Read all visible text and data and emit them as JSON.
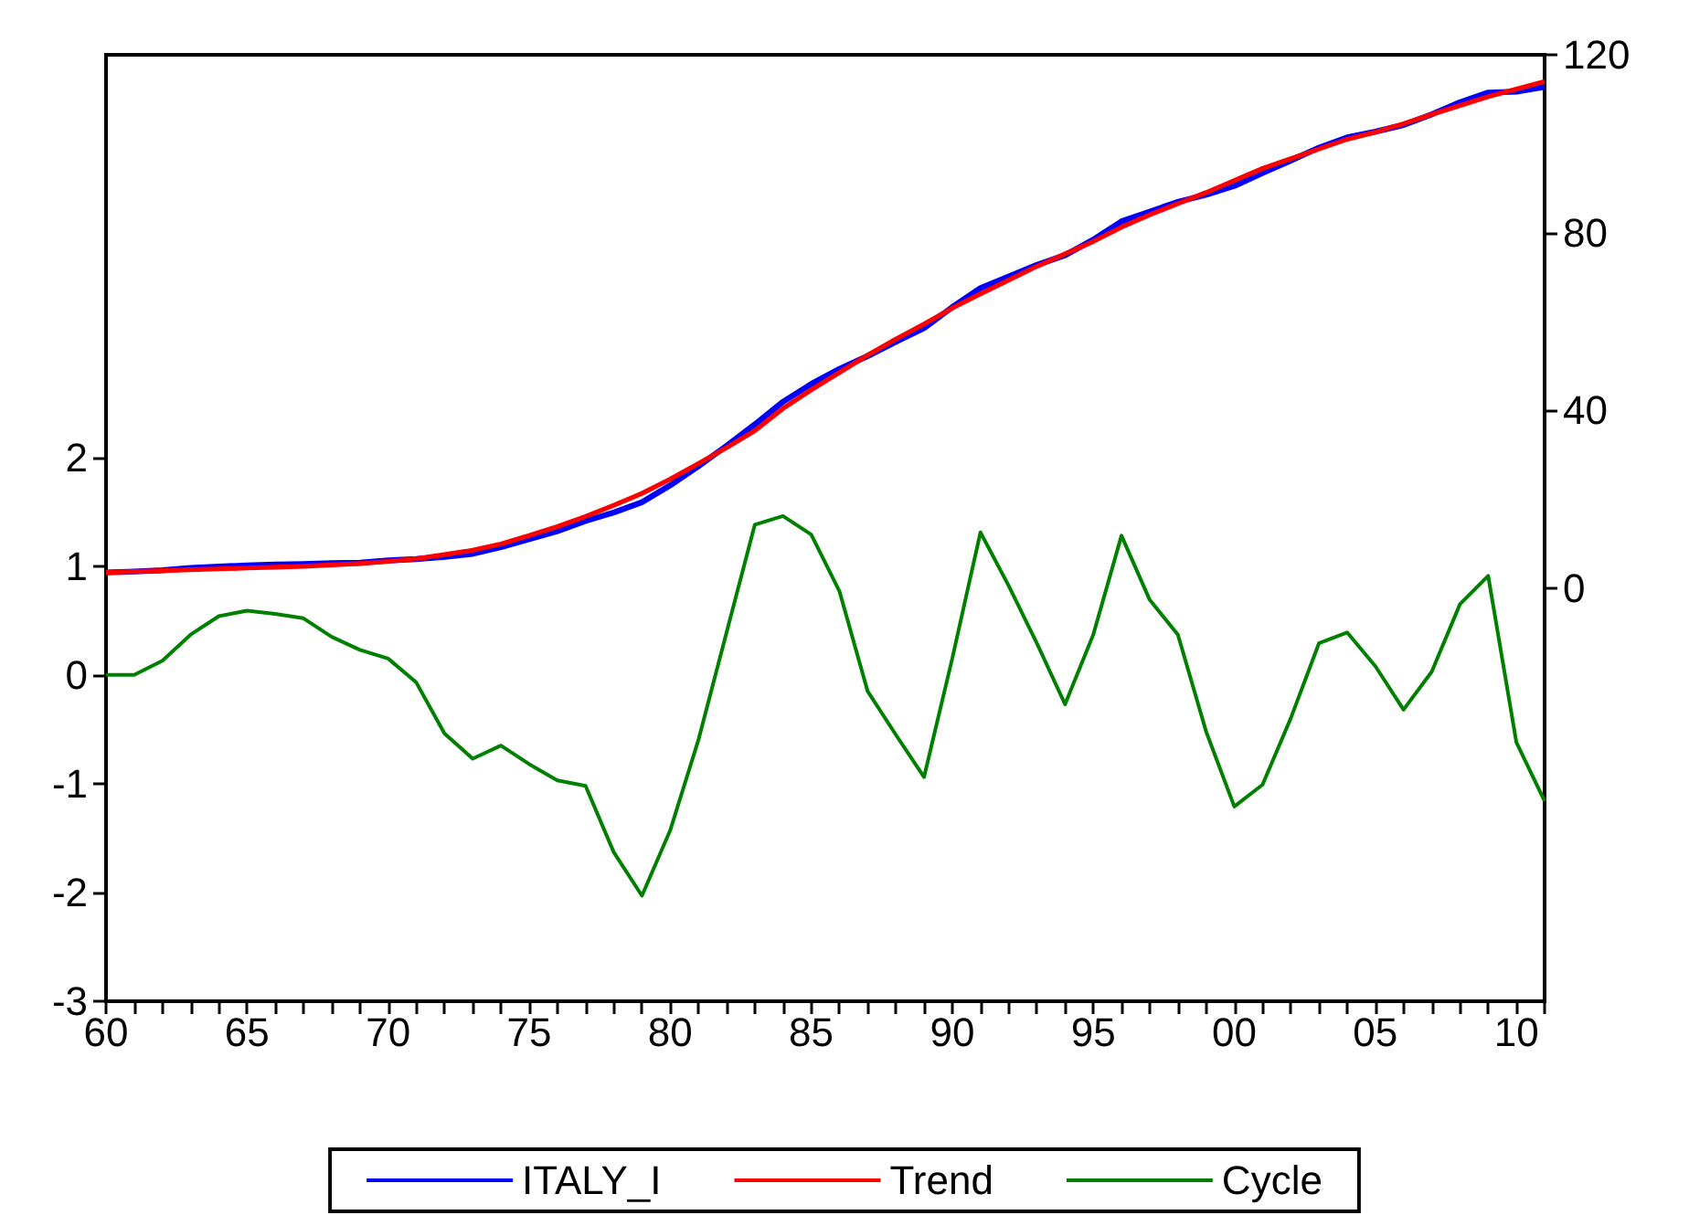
{
  "chart_data": {
    "type": "line",
    "x": [
      1960,
      1961,
      1962,
      1963,
      1964,
      1965,
      1966,
      1967,
      1968,
      1969,
      1970,
      1971,
      1972,
      1973,
      1974,
      1975,
      1976,
      1977,
      1978,
      1979,
      1980,
      1981,
      1982,
      1983,
      1984,
      1985,
      1986,
      1987,
      1988,
      1989,
      1990,
      1991,
      1992,
      1993,
      1994,
      1995,
      1996,
      1997,
      1998,
      1999,
      2000,
      2001,
      2002,
      2003,
      2004,
      2005,
      2006,
      2007,
      2008,
      2009,
      2010,
      2011
    ],
    "series": [
      {
        "name": "ITALY_I",
        "color": "#0000ff",
        "axis": "y2",
        "values": [
          3.5,
          3.7,
          4.0,
          4.5,
          4.8,
          5.1,
          5.3,
          5.4,
          5.6,
          5.7,
          6.2,
          6.5,
          7.0,
          7.7,
          9.2,
          11.0,
          12.8,
          15.1,
          17.0,
          19.3,
          23.1,
          27.4,
          32.0,
          36.8,
          41.9,
          45.9,
          49.3,
          52.2,
          55.4,
          58.5,
          63.2,
          67.5,
          70.1,
          72.7,
          74.9,
          78.4,
          82.5,
          84.7,
          86.9,
          88.5,
          90.5,
          93.4,
          96.2,
          99.1,
          101.4,
          102.7,
          104.2,
          106.6,
          109.3,
          111.5,
          111.7,
          112.8
        ]
      },
      {
        "name": "Trend",
        "color": "#ff0000",
        "axis": "y2",
        "values": [
          3.5,
          3.7,
          3.9,
          4.1,
          4.3,
          4.5,
          4.7,
          4.9,
          5.2,
          5.5,
          6.0,
          6.6,
          7.5,
          8.5,
          9.9,
          11.8,
          13.8,
          16.1,
          18.6,
          21.3,
          24.5,
          28.0,
          31.6,
          35.4,
          40.4,
          44.6,
          48.5,
          52.4,
          56.0,
          59.4,
          63.0,
          66.2,
          69.3,
          72.4,
          75.2,
          78.0,
          81.2,
          84.0,
          86.5,
          89.0,
          91.7,
          94.4,
          96.6,
          98.8,
          101.0,
          102.6,
          104.5,
          106.6,
          108.6,
          110.6,
          112.3,
          114.0
        ]
      },
      {
        "name": "Cycle",
        "color": "#008000",
        "axis": "y",
        "values": [
          0.0,
          0.0,
          0.13,
          0.37,
          0.54,
          0.59,
          0.56,
          0.52,
          0.35,
          0.23,
          0.15,
          -0.07,
          -0.54,
          -0.77,
          -0.65,
          -0.82,
          -0.97,
          -1.02,
          -1.63,
          -2.03,
          -1.43,
          -0.6,
          0.39,
          1.38,
          1.46,
          1.29,
          0.77,
          -0.15,
          -0.55,
          -0.94,
          0.15,
          1.31,
          0.82,
          0.29,
          -0.27,
          0.37,
          1.28,
          0.69,
          0.37,
          -0.52,
          -1.21,
          -1.01,
          -0.4,
          0.29,
          0.39,
          0.08,
          -0.32,
          0.03,
          0.65,
          0.91,
          -0.62,
          -1.16
        ]
      }
    ],
    "xlim": [
      1960,
      2011
    ],
    "xticks": [
      {
        "value": 1960,
        "label": "60"
      },
      {
        "value": 1961,
        "label": null
      },
      {
        "value": 1962,
        "label": null
      },
      {
        "value": 1963,
        "label": null
      },
      {
        "value": 1964,
        "label": null
      },
      {
        "value": 1965,
        "label": "65"
      },
      {
        "value": 1966,
        "label": null
      },
      {
        "value": 1967,
        "label": null
      },
      {
        "value": 1968,
        "label": null
      },
      {
        "value": 1969,
        "label": null
      },
      {
        "value": 1970,
        "label": "70"
      },
      {
        "value": 1971,
        "label": null
      },
      {
        "value": 1972,
        "label": null
      },
      {
        "value": 1973,
        "label": null
      },
      {
        "value": 1974,
        "label": null
      },
      {
        "value": 1975,
        "label": "75"
      },
      {
        "value": 1976,
        "label": null
      },
      {
        "value": 1977,
        "label": null
      },
      {
        "value": 1978,
        "label": null
      },
      {
        "value": 1979,
        "label": null
      },
      {
        "value": 1980,
        "label": "80"
      },
      {
        "value": 1981,
        "label": null
      },
      {
        "value": 1982,
        "label": null
      },
      {
        "value": 1983,
        "label": null
      },
      {
        "value": 1984,
        "label": null
      },
      {
        "value": 1985,
        "label": "85"
      },
      {
        "value": 1986,
        "label": null
      },
      {
        "value": 1987,
        "label": null
      },
      {
        "value": 1988,
        "label": null
      },
      {
        "value": 1989,
        "label": null
      },
      {
        "value": 1990,
        "label": "90"
      },
      {
        "value": 1991,
        "label": null
      },
      {
        "value": 1992,
        "label": null
      },
      {
        "value": 1993,
        "label": null
      },
      {
        "value": 1994,
        "label": null
      },
      {
        "value": 1995,
        "label": "95"
      },
      {
        "value": 1996,
        "label": null
      },
      {
        "value": 1997,
        "label": null
      },
      {
        "value": 1998,
        "label": null
      },
      {
        "value": 1999,
        "label": null
      },
      {
        "value": 2000,
        "label": "00"
      },
      {
        "value": 2001,
        "label": null
      },
      {
        "value": 2002,
        "label": null
      },
      {
        "value": 2003,
        "label": null
      },
      {
        "value": 2004,
        "label": null
      },
      {
        "value": 2005,
        "label": "05"
      },
      {
        "value": 2006,
        "label": null
      },
      {
        "value": 2007,
        "label": null
      },
      {
        "value": 2008,
        "label": null
      },
      {
        "value": 2009,
        "label": null
      },
      {
        "value": 2010,
        "label": "10"
      },
      {
        "value": 2011,
        "label": null
      }
    ],
    "ylim": [
      -3,
      5.7
    ],
    "yticks": [
      -3,
      -2,
      -1,
      0,
      1,
      2
    ],
    "y2lim": [
      -93,
      120
    ],
    "y2ticks": [
      0,
      40,
      80,
      120
    ],
    "legend": "bottom",
    "grid": false,
    "marker": "none",
    "line_style": "solid"
  }
}
